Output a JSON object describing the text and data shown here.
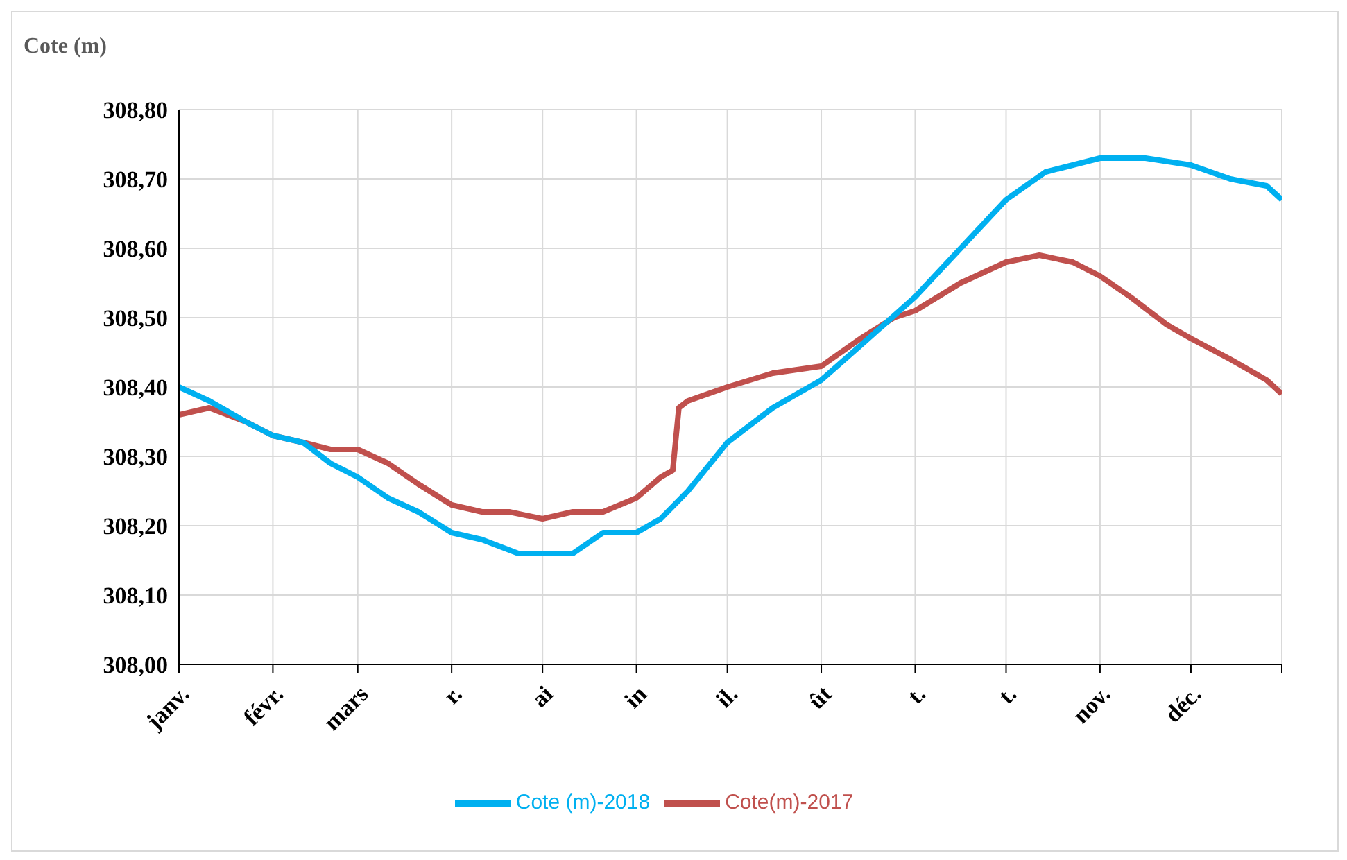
{
  "chart_data": {
    "type": "line",
    "ylabel": "Cote (m)",
    "xlim": [
      "--01-01",
      "--12-31"
    ],
    "xticks": [
      {
        "value": "--01-01",
        "label": "janv."
      },
      {
        "value": "--02-01",
        "label": "févr."
      },
      {
        "value": "--03-01",
        "label": "mars"
      },
      {
        "value": "--04-01",
        "label": "r."
      },
      {
        "value": "--05-01",
        "label": "ai"
      },
      {
        "value": "--06-01",
        "label": "in"
      },
      {
        "value": "--07-01",
        "label": "il."
      },
      {
        "value": "--08-01",
        "label": "ût"
      },
      {
        "value": "--09-01",
        "label": "t."
      },
      {
        "value": "--10-01",
        "label": "t."
      },
      {
        "value": "--11-01",
        "label": "nov."
      },
      {
        "value": "--12-01",
        "label": "déc."
      },
      {
        "value": "--12-31",
        "label": null
      }
    ],
    "ylim": [
      308.0,
      308.8
    ],
    "yticks": [
      {
        "value": 308.0,
        "label": "308,00"
      },
      {
        "value": 308.1,
        "label": "308,10"
      },
      {
        "value": 308.2,
        "label": "308,20"
      },
      {
        "value": 308.3,
        "label": "308,30"
      },
      {
        "value": 308.4,
        "label": "308,40"
      },
      {
        "value": 308.5,
        "label": "308,50"
      },
      {
        "value": 308.6,
        "label": "308,60"
      },
      {
        "value": 308.7,
        "label": "308,70"
      },
      {
        "value": 308.8,
        "label": "308,80"
      }
    ],
    "grid": true,
    "legend": "bottom",
    "marker": "none",
    "line_style": "solid",
    "series": [
      {
        "name": "Cote(m)-2017",
        "color": "#c0504d",
        "x": [
          "--01-01",
          "--01-11",
          "--01-23",
          "--02-01",
          "--02-11",
          "--02-20",
          "--03-01",
          "--03-11",
          "--03-21",
          "--04-01",
          "--04-11",
          "--04-20",
          "--05-01",
          "--05-11",
          "--05-21",
          "--06-01",
          "--06-09",
          "--06-13",
          "--06-15",
          "--06-18",
          "--07-01",
          "--07-16",
          "--08-01",
          "--08-14",
          "--08-25",
          "--09-01",
          "--09-16",
          "--10-01",
          "--10-12",
          "--10-23",
          "--11-01",
          "--11-11",
          "--11-23",
          "--12-01",
          "--12-14",
          "--12-26",
          "--12-31"
        ],
        "values": [
          308.36,
          308.37,
          308.35,
          308.33,
          308.32,
          308.31,
          308.31,
          308.29,
          308.26,
          308.23,
          308.22,
          308.22,
          308.21,
          308.22,
          308.22,
          308.24,
          308.27,
          308.28,
          308.37,
          308.38,
          308.4,
          308.42,
          308.43,
          308.47,
          308.5,
          308.51,
          308.55,
          308.58,
          308.59,
          308.58,
          308.56,
          308.53,
          308.49,
          308.47,
          308.44,
          308.41,
          308.39
        ]
      },
      {
        "name": "Cote (m)-2018",
        "color": "#00b0f0",
        "x": [
          "--01-01",
          "--01-11",
          "--01-23",
          "--02-01",
          "--02-11",
          "--02-20",
          "--03-01",
          "--03-11",
          "--03-21",
          "--04-01",
          "--04-11",
          "--04-23",
          "--05-01",
          "--05-11",
          "--05-21",
          "--06-01",
          "--06-09",
          "--06-18",
          "--07-01",
          "--07-16",
          "--08-01",
          "--08-14",
          "--09-01",
          "--09-16",
          "--10-01",
          "--10-14",
          "--11-01",
          "--11-16",
          "--12-01",
          "--12-14",
          "--12-26",
          "--12-31"
        ],
        "values": [
          308.4,
          308.38,
          308.35,
          308.33,
          308.32,
          308.29,
          308.27,
          308.24,
          308.22,
          308.19,
          308.18,
          308.16,
          308.16,
          308.16,
          308.19,
          308.19,
          308.21,
          308.25,
          308.32,
          308.37,
          308.41,
          308.46,
          308.53,
          308.6,
          308.67,
          308.71,
          308.73,
          308.73,
          308.72,
          308.7,
          308.69,
          308.67
        ]
      }
    ]
  }
}
